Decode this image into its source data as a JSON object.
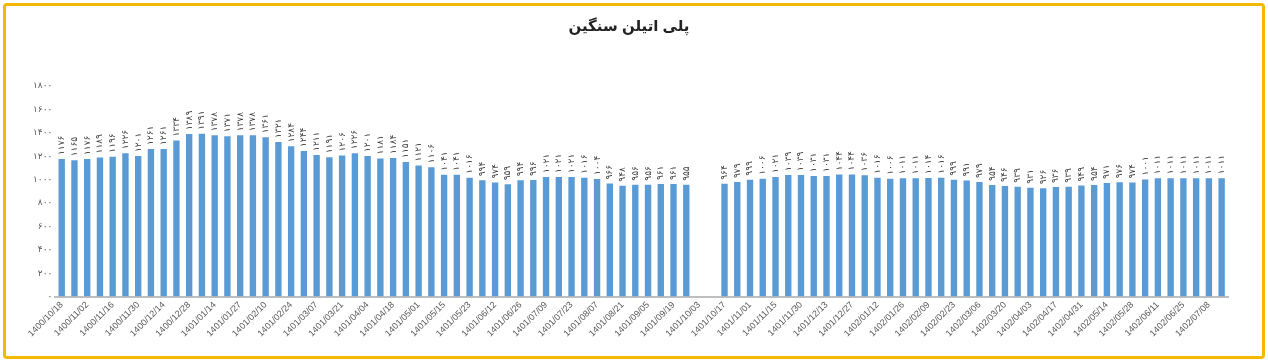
{
  "chart_data": {
    "type": "bar",
    "title": "پلی اتیلن سنگین",
    "color": "#5b9bd5",
    "grid": false,
    "legend": false,
    "categories": [
      "1400/10/18",
      null,
      "1400/11/02",
      null,
      "1400/11/16",
      null,
      "1400/11/30",
      null,
      "1400/12/14",
      null,
      "1400/12/28",
      null,
      "1401/01/14",
      null,
      "1401/01/27",
      null,
      "1401/02/10",
      null,
      "1401/02/24",
      null,
      "1401/03/07",
      null,
      "1401/03/21",
      null,
      "1401/04/04",
      null,
      "1401/04/18",
      null,
      "1401/05/01",
      null,
      "1401/05/15",
      null,
      "1401/05/23",
      null,
      "1401/06/12",
      null,
      "1401/06/26",
      null,
      "1401/07/09",
      null,
      "1401/07/23",
      null,
      "1401/08/07",
      null,
      "1401/08/21",
      null,
      "1401/09/05",
      null,
      "1401/09/19",
      null,
      "1401/10/03",
      null,
      "1401/10/17",
      null,
      "1401/11/01",
      null,
      "1401/11/15",
      null,
      "1401/11/30",
      null,
      "1401/12/13",
      null,
      "1401/12/27",
      null,
      "1402/01/12",
      null,
      "1402/01/26",
      null,
      "1402/02/09",
      null,
      "1402/02/23",
      null,
      "1402/03/06",
      null,
      "1402/03/20",
      null,
      "1402/04/03",
      null,
      "1402/04/17",
      null,
      "1402/04/31",
      null,
      "1402/05/14",
      null,
      "1402/05/28",
      null,
      "1402/06/11",
      null,
      "1402/06/25",
      null,
      "1402/07/08",
      null
    ],
    "values": [
      1176,
      1165,
      1176,
      1189,
      1196,
      1226,
      1201,
      1261,
      1261,
      1334,
      1389,
      1391,
      1378,
      1371,
      1378,
      1378,
      1361,
      1321,
      1284,
      1244,
      1211,
      1191,
      1206,
      1226,
      1201,
      1181,
      1184,
      1151,
      1121,
      1106,
      1041,
      1041,
      1016,
      994,
      974,
      959,
      994,
      996,
      1021,
      1021,
      1021,
      1016,
      1004,
      966,
      948,
      956,
      956,
      961,
      961,
      955,
      null,
      null,
      964,
      979,
      999,
      1006,
      1021,
      1039,
      1039,
      1031,
      1031,
      1044,
      1044,
      1036,
      1016,
      1006,
      1011,
      1011,
      1014,
      1016,
      999,
      991,
      979,
      954,
      946,
      939,
      931,
      926,
      936,
      939,
      949,
      954,
      971,
      976,
      974,
      1001,
      1011,
      1011,
      1011,
      1011,
      1011,
      1011
    ],
    "value_labels": [
      "۱۱۷۶",
      "۱۱۶۵",
      "۱۱۷۶",
      "۱۱۸۹",
      "۱۱۹۶",
      "۱۲۲۶",
      "۱۲۰۱",
      "۱۲۶۱",
      "۱۲۶۱",
      "۱۳۳۴",
      "۱۳۸۹",
      "۱۳۹۱",
      "۱۳۷۸",
      "۱۳۷۱",
      "۱۳۷۸",
      "۱۳۷۸",
      "۱۳۶۱",
      "۱۳۲۱",
      "۱۲۸۴",
      "۱۲۴۴",
      "۱۲۱۱",
      "۱۱۹۱",
      "۱۲۰۶",
      "۱۲۲۶",
      "۱۲۰۱",
      "۱۱۸۱",
      "۱۱۸۴",
      "۱۱۵۱",
      "۱۱۲۱",
      "۱۱۰۶",
      "۱۰۴۱",
      "۱۰۴۱",
      "۱۰۱۶",
      "۹۹۴",
      "۹۷۴",
      "۹۵۹",
      "۹۹۴",
      "۹۹۶",
      "۱۰۲۱",
      "۱۰۲۱",
      "۱۰۲۱",
      "۱۰۱۶",
      "۱۰۰۴",
      "۹۶۶",
      "۹۴۸",
      "۹۵۶",
      "۹۵۶",
      "۹۶۱",
      "۹۶۱",
      "۹۵۵",
      null,
      null,
      "۹۶۴",
      "۹۷۹",
      "۹۹۹",
      "۱۰۰۶",
      "۱۰۲۱",
      "۱۰۳۹",
      "۱۰۳۹",
      "۱۰۳۱",
      "۱۰۳۱",
      "۱۰۴۴",
      "۱۰۴۴",
      "۱۰۳۶",
      "۱۰۱۶",
      "۱۰۰۶",
      "۱۰۱۱",
      "۱۰۱۱",
      "۱۰۱۴",
      "۱۰۱۶",
      "۹۹۹",
      "۹۹۱",
      "۹۷۹",
      "۹۵۴",
      "۹۴۶",
      "۹۳۹",
      "۹۳۱",
      "۹۲۶",
      "۹۳۶",
      "۹۳۹",
      "۹۴۹",
      "۹۵۴",
      "۹۷۱",
      "۹۷۶",
      "۹۷۴",
      "۱۰۰۱",
      "۱۰۱۱",
      "۱۰۱۱",
      "۱۰۱۱",
      "۱۰۱۱",
      "۱۰۱۱",
      "۱۰۱۱"
    ],
    "ylim": [
      0,
      1800
    ],
    "yticks": [
      {
        "value": 0,
        "label": "۰"
      },
      {
        "value": 200,
        "label": "۲۰۰"
      },
      {
        "value": 400,
        "label": "۴۰۰"
      },
      {
        "value": 600,
        "label": "۶۰۰"
      },
      {
        "value": 800,
        "label": "۸۰۰"
      },
      {
        "value": 1000,
        "label": "۱۰۰۰"
      },
      {
        "value": 1200,
        "label": "۱۲۰۰"
      },
      {
        "value": 1400,
        "label": "۱۴۰۰"
      },
      {
        "value": 1600,
        "label": "۱۶۰۰"
      },
      {
        "value": 1800,
        "label": "۱۸۰۰"
      }
    ]
  }
}
